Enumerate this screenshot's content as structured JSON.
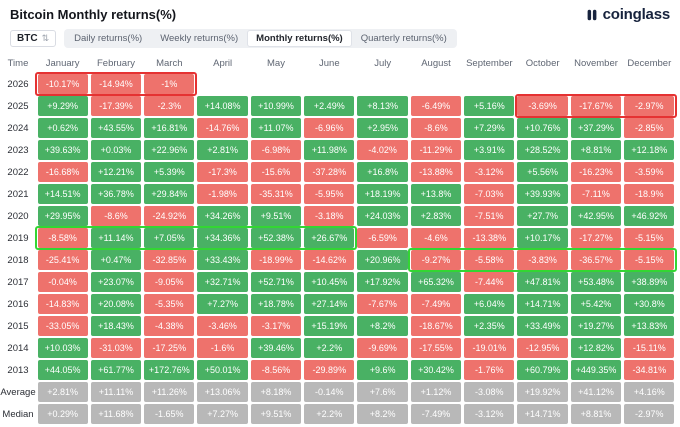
{
  "header": {
    "title": "Bitcoin Monthly returns(%)",
    "brand": "coinglass"
  },
  "toolbar": {
    "symbol": "BTC",
    "icons": {
      "symbol_sort": "⇅"
    },
    "tabs": [
      {
        "label": "Daily returns(%)",
        "active": false
      },
      {
        "label": "Weekly returns(%)",
        "active": false
      },
      {
        "label": "Monthly returns(%)",
        "active": true
      },
      {
        "label": "Quarterly returns(%)",
        "active": false
      }
    ]
  },
  "colors": {
    "positive": "#49b164",
    "negative": "#ee726c",
    "neutral": "#b8b8b8",
    "highlight_red": "#e53232",
    "highlight_green": "#33d633"
  },
  "table": {
    "columns": [
      "Time",
      "January",
      "February",
      "March",
      "April",
      "May",
      "June",
      "July",
      "August",
      "September",
      "October",
      "November",
      "December"
    ],
    "rows": [
      {
        "label": "2026",
        "summary": false,
        "values": [
          "-10.17%",
          "-14.94%",
          "-1%",
          "",
          "",
          "",
          "",
          "",
          "",
          "",
          "",
          ""
        ]
      },
      {
        "label": "2025",
        "summary": false,
        "values": [
          "+9.29%",
          "-17.39%",
          "-2.3%",
          "+14.08%",
          "+10.99%",
          "+2.49%",
          "+8.13%",
          "-6.49%",
          "+5.16%",
          "-3.69%",
          "-17.67%",
          "-2.97%"
        ]
      },
      {
        "label": "2024",
        "summary": false,
        "values": [
          "+0.62%",
          "+43.55%",
          "+16.81%",
          "-14.76%",
          "+11.07%",
          "-6.96%",
          "+2.95%",
          "-8.6%",
          "+7.29%",
          "+10.76%",
          "+37.29%",
          "-2.85%"
        ]
      },
      {
        "label": "2023",
        "summary": false,
        "values": [
          "+39.63%",
          "+0.03%",
          "+22.96%",
          "+2.81%",
          "-6.98%",
          "+11.98%",
          "-4.02%",
          "-11.29%",
          "+3.91%",
          "+28.52%",
          "+8.81%",
          "+12.18%"
        ]
      },
      {
        "label": "2022",
        "summary": false,
        "values": [
          "-16.68%",
          "+12.21%",
          "+5.39%",
          "-17.3%",
          "-15.6%",
          "-37.28%",
          "+16.8%",
          "-13.88%",
          "-3.12%",
          "+5.56%",
          "-16.23%",
          "-3.59%"
        ]
      },
      {
        "label": "2021",
        "summary": false,
        "values": [
          "+14.51%",
          "+36.78%",
          "+29.84%",
          "-1.98%",
          "-35.31%",
          "-5.95%",
          "+18.19%",
          "+13.8%",
          "-7.03%",
          "+39.93%",
          "-7.11%",
          "-18.9%"
        ]
      },
      {
        "label": "2020",
        "summary": false,
        "values": [
          "+29.95%",
          "-8.6%",
          "-24.92%",
          "+34.26%",
          "+9.51%",
          "-3.18%",
          "+24.03%",
          "+2.83%",
          "-7.51%",
          "+27.7%",
          "+42.95%",
          "+46.92%"
        ]
      },
      {
        "label": "2019",
        "summary": false,
        "values": [
          "-8.58%",
          "+11.14%",
          "+7.05%",
          "+34.36%",
          "+52.38%",
          "+26.67%",
          "-6.59%",
          "-4.6%",
          "-13.38%",
          "+10.17%",
          "-17.27%",
          "-5.15%"
        ]
      },
      {
        "label": "2018",
        "summary": false,
        "values": [
          "-25.41%",
          "+0.47%",
          "-32.85%",
          "+33.43%",
          "-18.99%",
          "-14.62%",
          "+20.96%",
          "-9.27%",
          "-5.58%",
          "-3.83%",
          "-36.57%",
          "-5.15%"
        ]
      },
      {
        "label": "2017",
        "summary": false,
        "values": [
          "-0.04%",
          "+23.07%",
          "-9.05%",
          "+32.71%",
          "+52.71%",
          "+10.45%",
          "+17.92%",
          "+65.32%",
          "-7.44%",
          "+47.81%",
          "+53.48%",
          "+38.89%"
        ]
      },
      {
        "label": "2016",
        "summary": false,
        "values": [
          "-14.83%",
          "+20.08%",
          "-5.35%",
          "+7.27%",
          "+18.78%",
          "+27.14%",
          "-7.67%",
          "-7.49%",
          "+6.04%",
          "+14.71%",
          "+5.42%",
          "+30.8%"
        ]
      },
      {
        "label": "2015",
        "summary": false,
        "values": [
          "-33.05%",
          "+18.43%",
          "-4.38%",
          "-3.46%",
          "-3.17%",
          "+15.19%",
          "+8.2%",
          "-18.67%",
          "+2.35%",
          "+33.49%",
          "+19.27%",
          "+13.83%"
        ]
      },
      {
        "label": "2014",
        "summary": false,
        "values": [
          "+10.03%",
          "-31.03%",
          "-17.25%",
          "-1.6%",
          "+39.46%",
          "+2.2%",
          "-9.69%",
          "-17.55%",
          "-19.01%",
          "-12.95%",
          "+12.82%",
          "-15.11%"
        ]
      },
      {
        "label": "2013",
        "summary": false,
        "values": [
          "+44.05%",
          "+61.77%",
          "+172.76%",
          "+50.01%",
          "-8.56%",
          "-29.89%",
          "+9.6%",
          "+30.42%",
          "-1.76%",
          "+60.79%",
          "+449.35%",
          "-34.81%"
        ]
      },
      {
        "label": "Average",
        "summary": true,
        "values": [
          "+2.81%",
          "+11.11%",
          "+11.26%",
          "+13.06%",
          "+8.18%",
          "-0.14%",
          "+7.6%",
          "+1.12%",
          "-3.08%",
          "+19.92%",
          "+41.12%",
          "+4.16%"
        ]
      },
      {
        "label": "Median",
        "summary": true,
        "values": [
          "+0.29%",
          "+11.68%",
          "-1.65%",
          "+7.27%",
          "+9.51%",
          "+2.2%",
          "+8.2%",
          "-7.49%",
          "-3.12%",
          "+14.71%",
          "+8.81%",
          "-2.97%"
        ]
      }
    ],
    "highlights": [
      {
        "row": "2026",
        "from": 1,
        "to": 3,
        "color": "red"
      },
      {
        "row": "2025",
        "from": 10,
        "to": 12,
        "color": "red"
      },
      {
        "row": "2019",
        "from": 1,
        "to": 6,
        "color": "green"
      },
      {
        "row": "2018",
        "from": 8,
        "to": 12,
        "color": "green"
      }
    ]
  }
}
